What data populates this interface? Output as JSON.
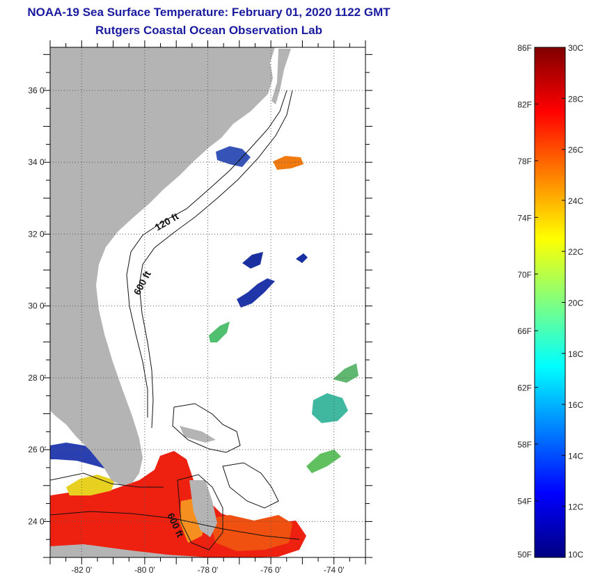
{
  "header": {
    "title": "NOAA-19 Sea Surface Temperature:  February 01, 2020 1122 GMT",
    "subtitle": "Rutgers Coastal Ocean Observation Lab"
  },
  "map": {
    "lat_range": [
      23.0,
      37.2
    ],
    "lon_range": [
      -83.0,
      -73.0
    ],
    "lat_ticks": [
      {
        "value": 36,
        "label": "36 0'"
      },
      {
        "value": 34,
        "label": "34 0'"
      },
      {
        "value": 32,
        "label": "32 0'"
      },
      {
        "value": 30,
        "label": "30 0'"
      },
      {
        "value": 28,
        "label": "28 0'"
      },
      {
        "value": 26,
        "label": "26 0'"
      },
      {
        "value": 24,
        "label": "24 0'"
      }
    ],
    "lon_ticks": [
      {
        "value": -82,
        "label": "-82 0'"
      },
      {
        "value": -80,
        "label": "-80 0'"
      },
      {
        "value": -78,
        "label": "-78 0'"
      },
      {
        "value": -76,
        "label": "-76 0'"
      },
      {
        "value": -74,
        "label": "-74 0'"
      }
    ],
    "contour_labels": [
      {
        "text": "120 ft"
      },
      {
        "text": "600 ft"
      },
      {
        "text": "600 ft"
      }
    ],
    "colors": {
      "land": "#b4b4b4",
      "ocean": "#ffffff",
      "grid": "#555555",
      "title": "#1a1aa0"
    }
  },
  "colorbar": {
    "fahrenheit_labels": [
      "86F",
      "82F",
      "78F",
      "74F",
      "70F",
      "66F",
      "62F",
      "58F",
      "54F",
      "50F"
    ],
    "celsius_labels": [
      "30C",
      "28C",
      "26C",
      "24C",
      "22C",
      "20C",
      "18C",
      "16C",
      "14C",
      "12C",
      "10C"
    ],
    "colors": [
      "#800000",
      "#ff0000",
      "#ff8000",
      "#ffff00",
      "#80ff80",
      "#00ffff",
      "#0080ff",
      "#0000ff",
      "#000080"
    ]
  }
}
